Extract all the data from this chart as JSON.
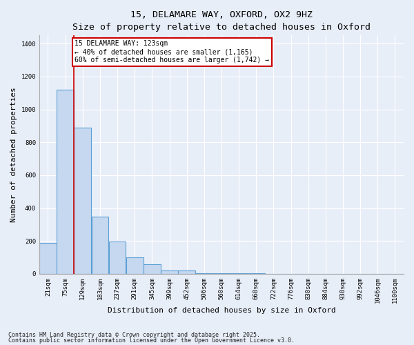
{
  "title1": "15, DELAMARE WAY, OXFORD, OX2 9HZ",
  "title2": "Size of property relative to detached houses in Oxford",
  "xlabel": "Distribution of detached houses by size in Oxford",
  "ylabel": "Number of detached properties",
  "bar_labels": [
    "21sqm",
    "75sqm",
    "129sqm",
    "183sqm",
    "237sqm",
    "291sqm",
    "345sqm",
    "399sqm",
    "452sqm",
    "506sqm",
    "560sqm",
    "614sqm",
    "668sqm",
    "722sqm",
    "776sqm",
    "830sqm",
    "884sqm",
    "938sqm",
    "992sqm",
    "1046sqm",
    "1100sqm"
  ],
  "bar_values": [
    190,
    1120,
    890,
    350,
    195,
    100,
    60,
    20,
    20,
    5,
    3,
    2,
    2,
    1,
    1,
    1,
    0,
    0,
    0,
    0,
    0
  ],
  "bar_color": "#c5d8f0",
  "bar_edgecolor": "#5a9fd4",
  "bar_alpha": 1.0,
  "vline_x": 1.5,
  "vline_color": "#cc0000",
  "annotation_text": "15 DELAMARE WAY: 123sqm\n← 40% of detached houses are smaller (1,165)\n60% of semi-detached houses are larger (1,742) →",
  "annotation_box_color": "#cc0000",
  "annotation_box_facecolor": "#ffffff",
  "ylim": [
    0,
    1450
  ],
  "yticks": [
    0,
    200,
    400,
    600,
    800,
    1000,
    1200,
    1400
  ],
  "bg_color": "#e8eef8",
  "axes_bg_color": "#e8eef8",
  "grid_color": "#ffffff",
  "footnote1": "Contains HM Land Registry data © Crown copyright and database right 2025.",
  "footnote2": "Contains public sector information licensed under the Open Government Licence v3.0.",
  "title1_fontsize": 9.5,
  "title2_fontsize": 8.5,
  "xlabel_fontsize": 8,
  "ylabel_fontsize": 8,
  "tick_fontsize": 6.5,
  "annotation_fontsize": 7,
  "footnote_fontsize": 6
}
